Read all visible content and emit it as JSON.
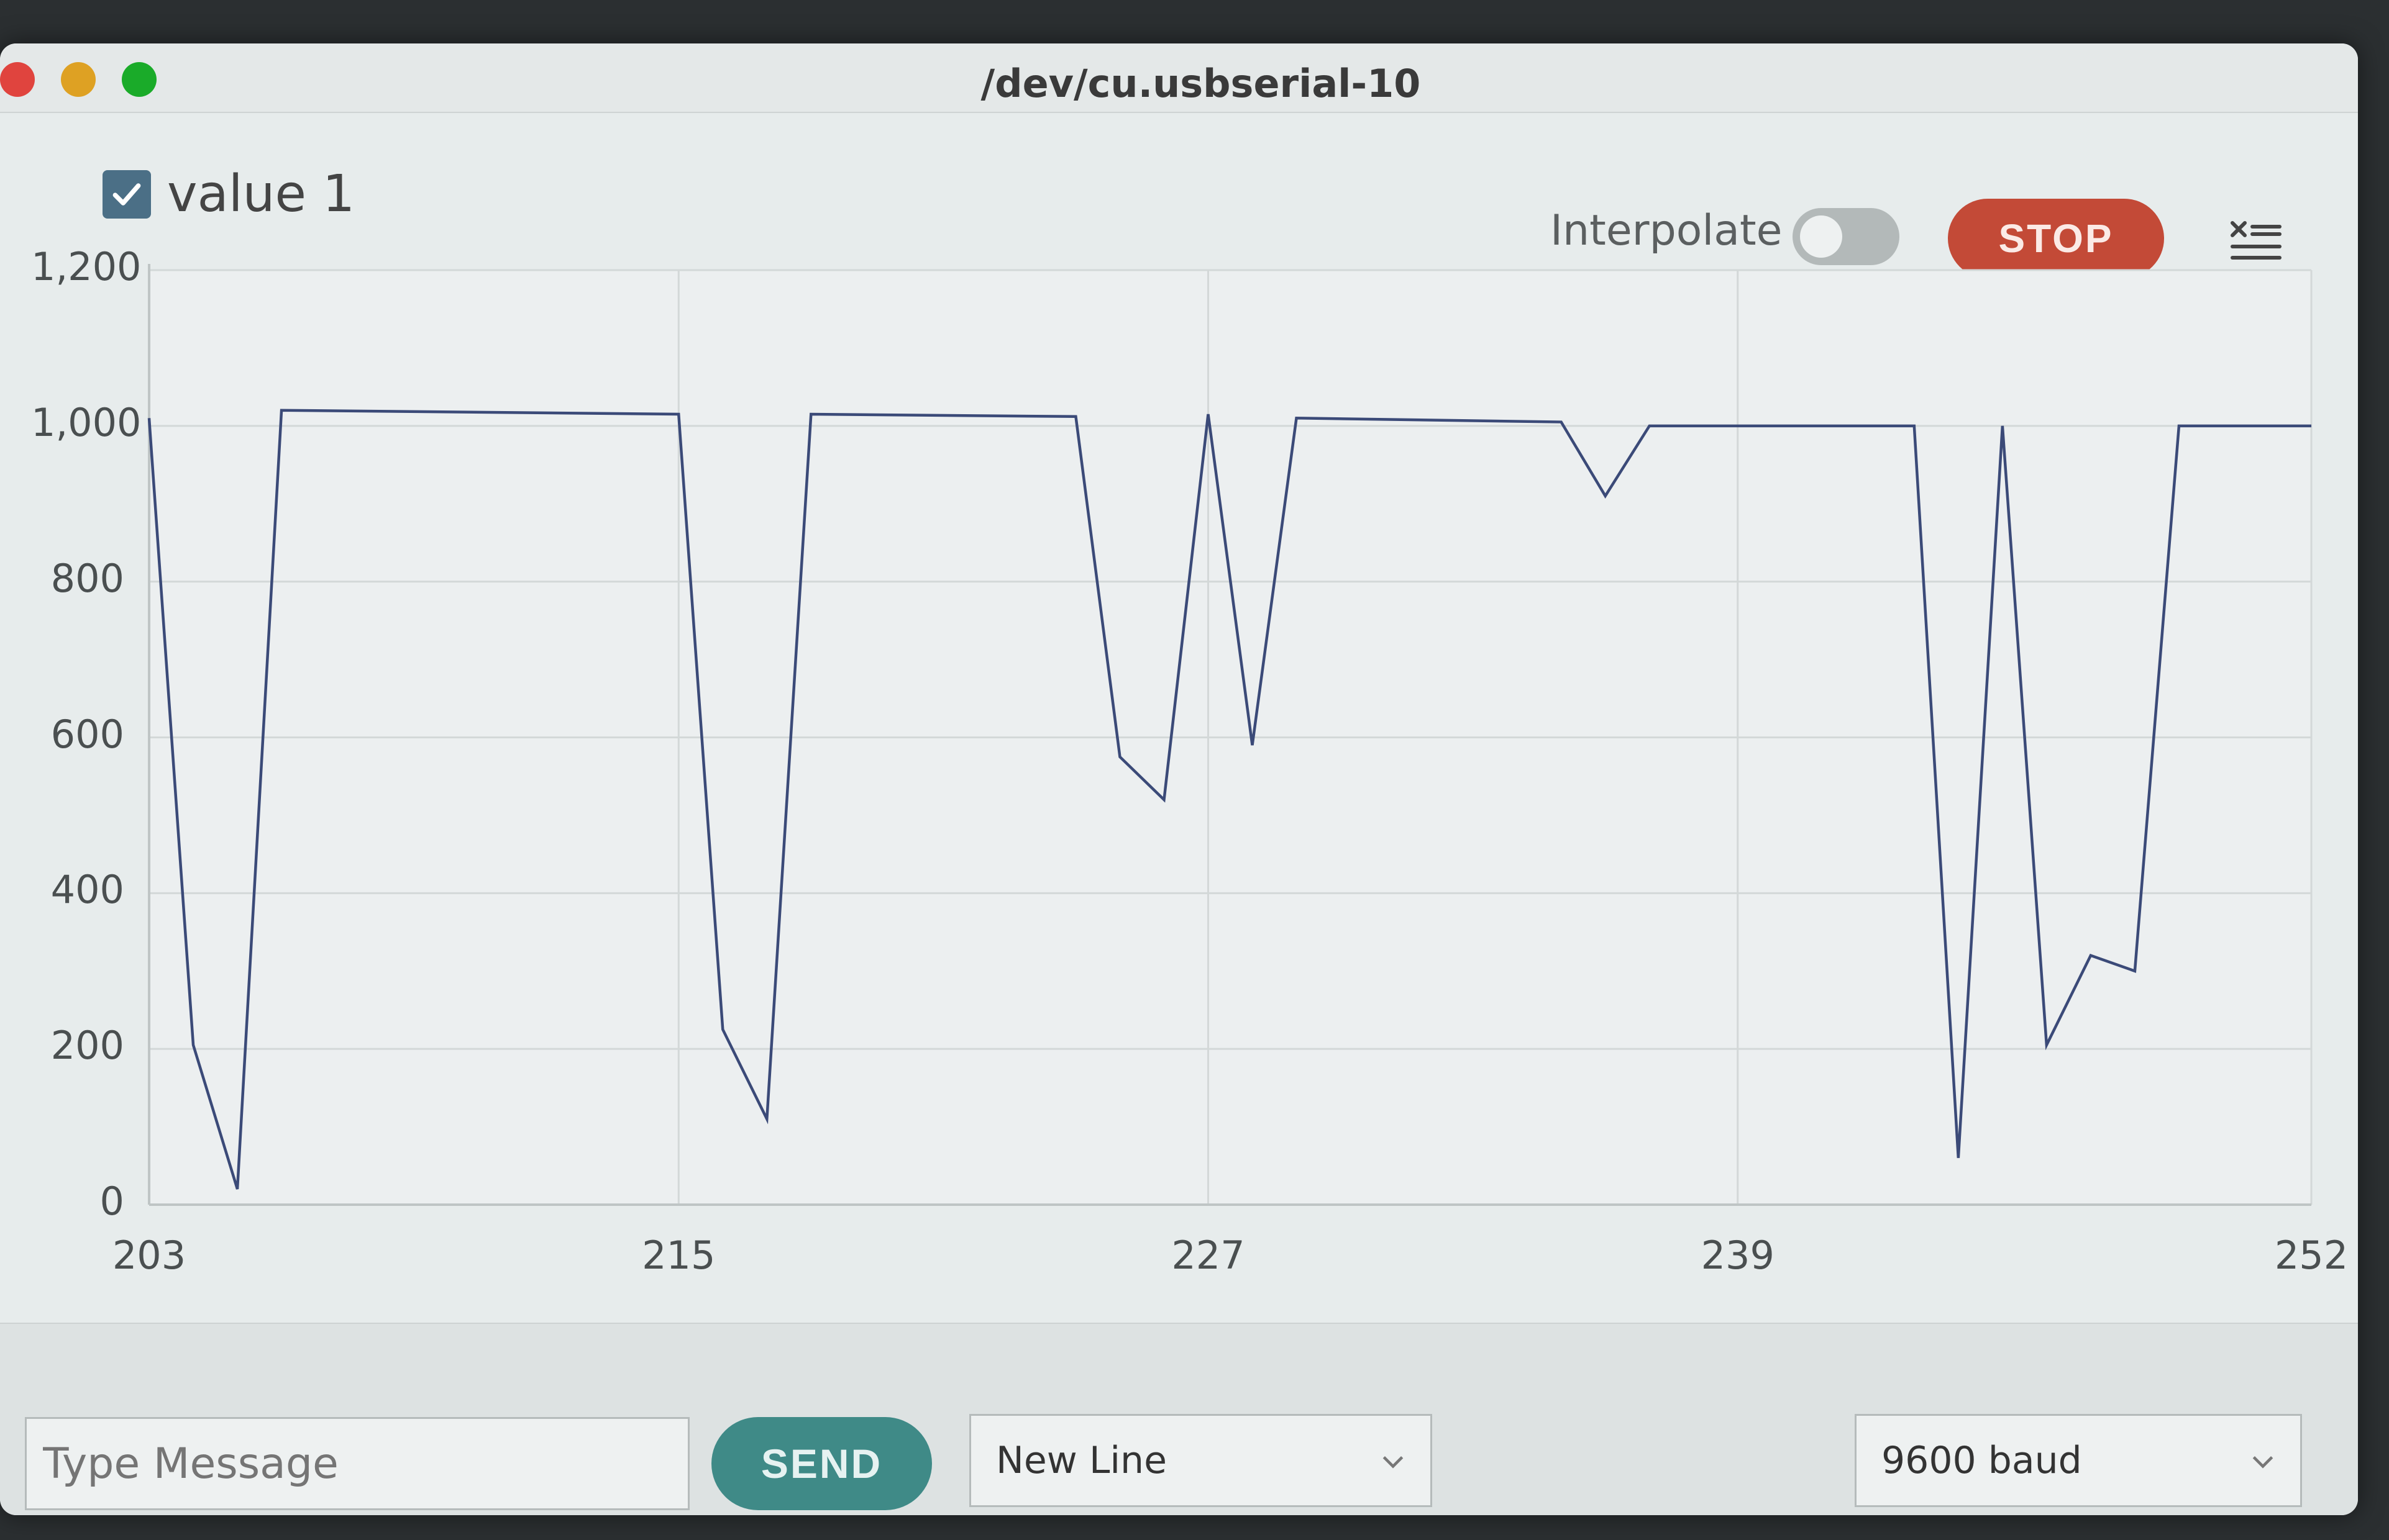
{
  "window": {
    "title": "/dev/cu.usbserial-10"
  },
  "legend": {
    "series_label": "value 1",
    "checked": true
  },
  "toolbar": {
    "interpolate_label": "Interpolate",
    "interpolate_on": false,
    "stop_label": "STOP",
    "menu_icon": "list-settings-icon"
  },
  "chart_data": {
    "type": "line",
    "series": [
      {
        "name": "value 1",
        "x": [
          203,
          204,
          205,
          206,
          215,
          216,
          217,
          218,
          224,
          225,
          226,
          227,
          228,
          229,
          235,
          236,
          237,
          243,
          244,
          245,
          246,
          247,
          248,
          249,
          250,
          252
        ],
        "values": [
          1010,
          205,
          20,
          1020,
          1015,
          225,
          110,
          1015,
          1012,
          575,
          520,
          1015,
          590,
          1010,
          1005,
          910,
          1000,
          1000,
          60,
          1000,
          205,
          320,
          300,
          1000,
          1000,
          1000
        ]
      }
    ],
    "xticks": [
      "203",
      "215",
      "227",
      "239",
      "252"
    ],
    "yticks": [
      "0",
      "200",
      "400",
      "600",
      "800",
      "1,000",
      "1,200"
    ],
    "xlim": [
      203,
      252
    ],
    "ylim": [
      0,
      1200
    ],
    "grid": true,
    "line_color": "#3b4a78"
  },
  "bottom": {
    "message_placeholder": "Type Message",
    "send_label": "SEND",
    "line_ending": "New Line",
    "baud": "9600 baud"
  }
}
